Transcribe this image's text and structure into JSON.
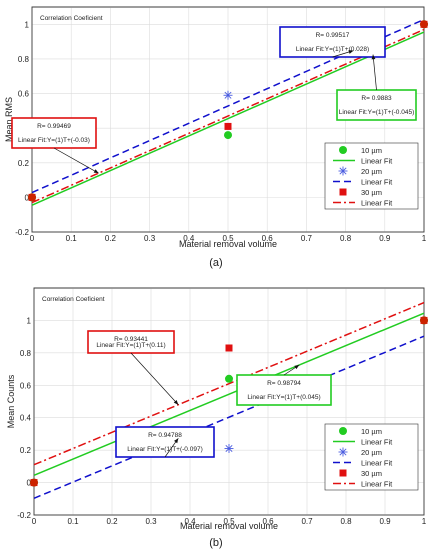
{
  "chart_data": [
    {
      "type": "scatter",
      "panel_label": "(a)",
      "title": "",
      "annotation_title": "Correlation Coeficient",
      "xlabel": "Material removal volume",
      "ylabel": "Mean RMS",
      "xlim": [
        0,
        1
      ],
      "ylim": [
        -0.2,
        1.1
      ],
      "xticks": [
        "0",
        "0.1",
        "0.2",
        "0.3",
        "0.4",
        "0.5",
        "0.6",
        "0.7",
        "0.8",
        "0.9",
        "1"
      ],
      "yticks": [
        "-0.2",
        "0",
        "0.2",
        "0.4",
        "0.6",
        "0.8",
        "1"
      ],
      "ytick_values": [
        -0.2,
        0,
        0.2,
        0.4,
        0.6,
        0.8,
        1
      ],
      "grid": true,
      "legend_position": "bottom-right",
      "legend": [
        "10 µm",
        "Linear Fit",
        "20 µm",
        "Linear Fit",
        "30 µm",
        "Linear Fit"
      ],
      "series": [
        {
          "name": "10 µm",
          "marker": "circle",
          "color": "#22cc22",
          "x": [
            0,
            0.5,
            1
          ],
          "y": [
            0,
            0.36,
            1
          ]
        },
        {
          "name": "20 µm",
          "marker": "asterisk",
          "color": "#4a5ce0",
          "x": [
            0,
            0.5,
            1
          ],
          "y": [
            0,
            0.59,
            1
          ]
        },
        {
          "name": "30 µm",
          "marker": "square",
          "color": "#e01010",
          "x": [
            0,
            0.5,
            1
          ],
          "y": [
            0,
            0.41,
            1
          ]
        }
      ],
      "fits": [
        {
          "name": "Linear Fit",
          "style": "solid",
          "color": "#22cc22",
          "slope": 1,
          "intercept": -0.045
        },
        {
          "name": "Linear Fit",
          "style": "dashed",
          "color": "#1010cc",
          "slope": 1,
          "intercept": 0.028
        },
        {
          "name": "Linear Fit",
          "style": "dashdot",
          "color": "#e01010",
          "slope": 1,
          "intercept": -0.03
        }
      ],
      "annotations": [
        {
          "line1": "R= 0.99469",
          "line2": "Linear Fit:Y=(1)T+(-0.03)",
          "color": "#e01010"
        },
        {
          "line1": "R= 0.99517",
          "line2": "Linear Fit:Y=(1)T+(0.028)",
          "color": "#1010cc"
        },
        {
          "line1": "R= 0.9883",
          "line2": "Linear Fit:Y=(1)T+(-0.045)",
          "color": "#22cc22"
        }
      ]
    },
    {
      "type": "scatter",
      "panel_label": "(b)",
      "title": "",
      "annotation_title": "Correlation Coeficient",
      "xlabel": "Material removal volume",
      "ylabel": "Mean Counts",
      "xlim": [
        0,
        1
      ],
      "ylim": [
        -0.2,
        1.2
      ],
      "xticks": [
        "0",
        "0.1",
        "0.2",
        "0.3",
        "0.4",
        "0.5",
        "0.6",
        "0.7",
        "0.8",
        "0.9",
        "1"
      ],
      "yticks": [
        "-0.2",
        "0",
        "0.2",
        "0.4",
        "0.6",
        "0.8",
        "1"
      ],
      "ytick_values": [
        -0.2,
        0,
        0.2,
        0.4,
        0.6,
        0.8,
        1
      ],
      "grid": true,
      "legend_position": "bottom-right",
      "legend": [
        "10 µm",
        "Linear Fit",
        "20 µm",
        "Linear Fit",
        "30 µm",
        "Linear Fit"
      ],
      "series": [
        {
          "name": "10 µm",
          "marker": "circle",
          "color": "#22cc22",
          "x": [
            0,
            0.5,
            1
          ],
          "y": [
            0,
            0.64,
            1
          ]
        },
        {
          "name": "20 µm",
          "marker": "asterisk",
          "color": "#4a5ce0",
          "x": [
            0,
            0.5,
            1
          ],
          "y": [
            0,
            0.21,
            1
          ]
        },
        {
          "name": "30 µm",
          "marker": "square",
          "color": "#e01010",
          "x": [
            0,
            0.5,
            1
          ],
          "y": [
            0,
            0.83,
            1
          ]
        }
      ],
      "fits": [
        {
          "name": "Linear Fit",
          "style": "solid",
          "color": "#22cc22",
          "slope": 1,
          "intercept": 0.045
        },
        {
          "name": "Linear Fit",
          "style": "dashed",
          "color": "#1010cc",
          "slope": 1,
          "intercept": -0.097
        },
        {
          "name": "Linear Fit",
          "style": "dashdot",
          "color": "#e01010",
          "slope": 1,
          "intercept": 0.11
        }
      ],
      "annotations": [
        {
          "line1": "R= 0.93441",
          "line2": "Linear Fit:Y=(1)T+(0.11)",
          "color": "#e01010"
        },
        {
          "line1": "R= 0.98794",
          "line2": "Linear Fit:Y=(1)T+(0.045)",
          "color": "#22cc22"
        },
        {
          "line1": "R= 0.94788",
          "line2": "Linear Fit:Y=(1)T+(-0.097)",
          "color": "#1010cc"
        }
      ]
    }
  ]
}
